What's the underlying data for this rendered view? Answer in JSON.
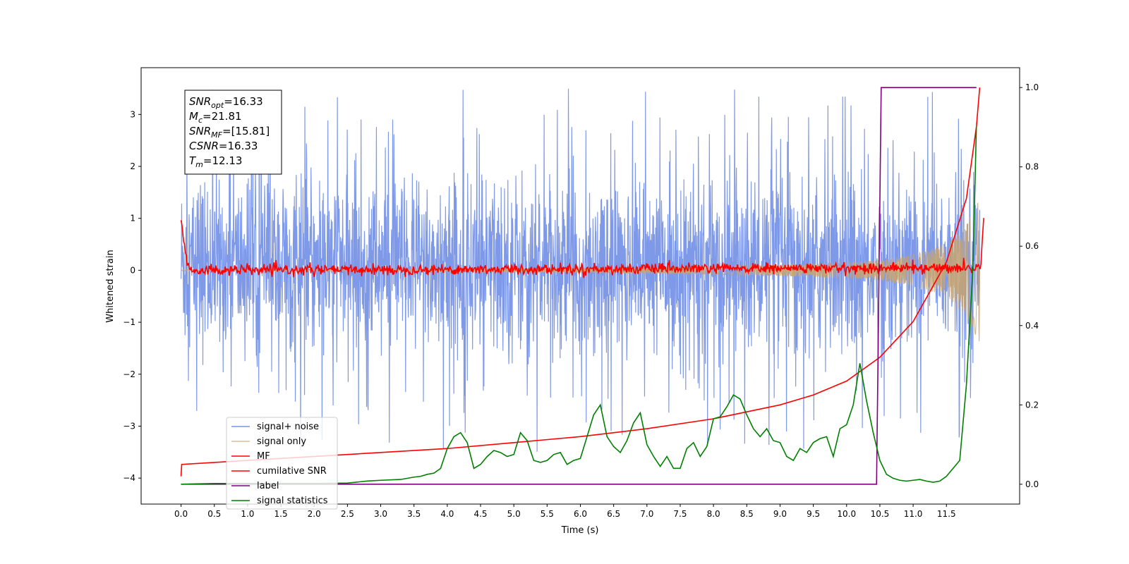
{
  "chart_data": {
    "type": "line",
    "xlabel": "Time (s)",
    "ylabel": "Whitened strain",
    "xlim": [
      -0.6,
      12.6
    ],
    "ylim_left": [
      -4.5,
      3.9
    ],
    "ylim_right": [
      -0.05,
      1.05
    ],
    "x_ticks": [
      0.0,
      0.5,
      1.0,
      1.5,
      2.0,
      2.5,
      3.0,
      3.5,
      4.0,
      4.5,
      5.0,
      5.5,
      6.0,
      6.5,
      7.0,
      7.5,
      8.0,
      8.5,
      9.0,
      9.5,
      10.0,
      10.5,
      11.0,
      11.5
    ],
    "x_tick_labels": [
      "0.0",
      "0.5",
      "1.0",
      "1.5",
      "2.0",
      "2.5",
      "3.0",
      "3.5",
      "4.0",
      "4.5",
      "5.0",
      "5.5",
      "6.0",
      "6.5",
      "7.0",
      "7.5",
      "8.0",
      "8.5",
      "9.0",
      "9.5",
      "10.0",
      "10.5",
      "11.0",
      "11.5"
    ],
    "y_left_ticks": [
      3,
      2,
      1,
      0,
      -1,
      -2,
      -3,
      -4
    ],
    "y_left_tick_labels": [
      "3",
      "2",
      "1",
      "0",
      "−1",
      "−2",
      "−3",
      "−4"
    ],
    "y_right_ticks": [
      1.0,
      0.8,
      0.6,
      0.4,
      0.2,
      0.0
    ],
    "y_right_tick_labels": [
      "1.0",
      "0.8",
      "0.6",
      "0.4",
      "0.2",
      "0.0"
    ],
    "grid": false,
    "legend_position": "lower-left",
    "annotation": {
      "lines": [
        {
          "sym": "SNR",
          "sub": "opt",
          "value": "=16.33"
        },
        {
          "sym": "M",
          "sub": "c",
          "value": "=21.81"
        },
        {
          "sym": "SNR",
          "sub": "MF",
          "value": "=[15.81]"
        },
        {
          "sym": "CSNR",
          "sub": "",
          "value": "=16.33"
        },
        {
          "sym": "T",
          "sub": "m",
          "value": "=12.13"
        }
      ]
    },
    "series": [
      {
        "name": "signal+ noise",
        "axis": "left",
        "color": "#7893e8",
        "style": "noise band, roughly ±2 with spikes to about ±3.5",
        "x_range": [
          0.0,
          12.0
        ],
        "envelope_upper": 2.0,
        "envelope_lower": -1.8,
        "spike_max": 3.55,
        "spike_min": -4.15
      },
      {
        "name": "signal only",
        "axis": "left",
        "color": "#c9a46e",
        "style": "chirp growing in amplitude",
        "x": [
          0.0,
          2.0,
          4.0,
          6.0,
          8.0,
          9.0,
          10.0,
          10.5,
          11.0,
          11.5,
          11.8,
          12.0
        ],
        "amplitude": [
          0.01,
          0.02,
          0.03,
          0.05,
          0.08,
          0.11,
          0.15,
          0.2,
          0.3,
          0.5,
          0.9,
          1.4
        ]
      },
      {
        "name": "MF",
        "axis": "left",
        "color": "#ff0000",
        "style": "noisy trace around 0",
        "x": [
          0.0,
          0.03,
          0.1,
          0.2,
          12.0,
          12.03,
          12.06
        ],
        "y": [
          1.0,
          0.6,
          0.1,
          0.0,
          0.05,
          0.3,
          1.0
        ],
        "jitter": 0.05
      },
      {
        "name": "cumilative SNR",
        "axis": "right",
        "color": "#ff0000",
        "x": [
          0.0,
          0.01,
          1.0,
          2.0,
          3.0,
          4.0,
          5.0,
          6.0,
          7.0,
          8.0,
          9.0,
          9.5,
          10.0,
          10.5,
          11.0,
          11.5,
          11.8,
          11.95,
          12.0
        ],
        "y": [
          0.02,
          0.05,
          0.06,
          0.07,
          0.08,
          0.09,
          0.105,
          0.12,
          0.14,
          0.165,
          0.2,
          0.225,
          0.26,
          0.32,
          0.41,
          0.56,
          0.72,
          0.9,
          1.0
        ]
      },
      {
        "name": "label",
        "axis": "right",
        "color": "#800080",
        "x": [
          0.0,
          10.45,
          10.52,
          11.95
        ],
        "y": [
          0.0,
          0.0,
          1.0,
          1.0
        ]
      },
      {
        "name": "signal statistics",
        "axis": "right",
        "color": "#008000",
        "x": [
          0.0,
          0.5,
          1.0,
          1.5,
          2.0,
          2.5,
          2.8,
          3.0,
          3.3,
          3.5,
          3.6,
          3.7,
          3.8,
          3.9,
          4.0,
          4.1,
          4.2,
          4.3,
          4.4,
          4.5,
          4.6,
          4.7,
          4.8,
          4.9,
          5.0,
          5.1,
          5.2,
          5.3,
          5.4,
          5.5,
          5.6,
          5.7,
          5.8,
          5.9,
          6.0,
          6.1,
          6.2,
          6.3,
          6.4,
          6.5,
          6.6,
          6.7,
          6.8,
          6.9,
          7.0,
          7.1,
          7.2,
          7.3,
          7.4,
          7.5,
          7.6,
          7.7,
          7.8,
          7.9,
          8.0,
          8.1,
          8.2,
          8.3,
          8.4,
          8.5,
          8.6,
          8.7,
          8.8,
          8.9,
          9.0,
          9.1,
          9.2,
          9.3,
          9.4,
          9.5,
          9.6,
          9.7,
          9.8,
          9.9,
          10.0,
          10.1,
          10.2,
          10.3,
          10.4,
          10.5,
          10.6,
          10.7,
          10.8,
          10.9,
          11.0,
          11.1,
          11.2,
          11.3,
          11.4,
          11.5,
          11.6,
          11.7,
          11.8,
          11.9,
          11.95
        ],
        "y": [
          0.0,
          0.002,
          0.002,
          0.002,
          0.002,
          0.003,
          0.008,
          0.01,
          0.012,
          0.018,
          0.02,
          0.025,
          0.028,
          0.04,
          0.09,
          0.12,
          0.13,
          0.105,
          0.04,
          0.05,
          0.07,
          0.085,
          0.08,
          0.07,
          0.075,
          0.13,
          0.11,
          0.06,
          0.055,
          0.06,
          0.075,
          0.08,
          0.05,
          0.06,
          0.065,
          0.12,
          0.175,
          0.2,
          0.12,
          0.095,
          0.08,
          0.11,
          0.155,
          0.18,
          0.1,
          0.07,
          0.045,
          0.07,
          0.04,
          0.04,
          0.09,
          0.105,
          0.07,
          0.095,
          0.165,
          0.17,
          0.195,
          0.225,
          0.215,
          0.175,
          0.14,
          0.12,
          0.14,
          0.11,
          0.105,
          0.07,
          0.06,
          0.09,
          0.08,
          0.105,
          0.115,
          0.12,
          0.07,
          0.14,
          0.15,
          0.2,
          0.305,
          0.21,
          0.13,
          0.06,
          0.025,
          0.015,
          0.01,
          0.008,
          0.01,
          0.012,
          0.008,
          0.005,
          0.008,
          0.02,
          0.04,
          0.06,
          0.25,
          0.55,
          0.9
        ]
      }
    ]
  }
}
